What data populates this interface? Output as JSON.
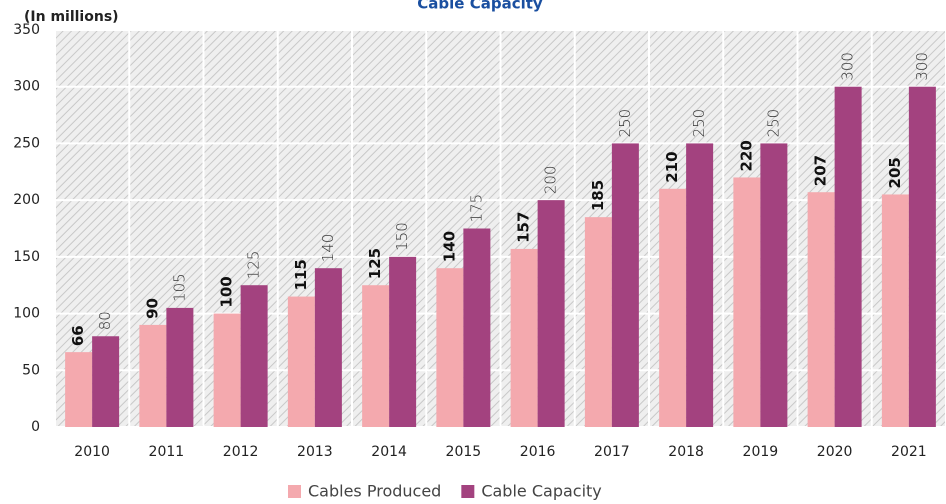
{
  "chart_data": {
    "type": "bar",
    "title": "Cable Capacity",
    "y_label": "(In millions)",
    "categories": [
      "2010",
      "2011",
      "2012",
      "2013",
      "2014",
      "2015",
      "2016",
      "2017",
      "2018",
      "2019",
      "2020",
      "2021"
    ],
    "series": [
      {
        "name": "Cables Produced",
        "color": "#f4a9ae",
        "values": [
          66,
          90,
          100,
          115,
          125,
          140,
          157,
          185,
          210,
          220,
          207,
          205
        ]
      },
      {
        "name": "Cable Capacity",
        "color": "#a3427f",
        "values": [
          80,
          105,
          125,
          140,
          150,
          175,
          200,
          250,
          250,
          250,
          300,
          300
        ]
      }
    ],
    "ylim": [
      0,
      350
    ],
    "yticks": [
      0,
      50,
      100,
      150,
      200,
      250,
      300,
      350
    ],
    "grid": true,
    "legend": "bottom"
  }
}
